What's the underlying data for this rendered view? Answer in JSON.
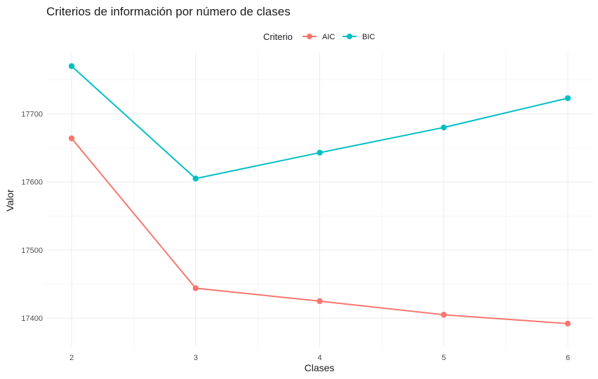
{
  "chart_data": {
    "type": "line",
    "title": "Criterios de información por número de clases",
    "xlabel": "Clases",
    "ylabel": "Valor",
    "x": [
      2,
      3,
      4,
      5,
      6
    ],
    "x_ticks": [
      "2",
      "3",
      "4",
      "5",
      "6"
    ],
    "y_ticks": [
      17400,
      17500,
      17600,
      17700
    ],
    "xlim": [
      2,
      6
    ],
    "ylim": [
      17358,
      17790
    ],
    "grid": true,
    "legend": {
      "title": "Criterio",
      "position": "top"
    },
    "series": [
      {
        "name": "AIC",
        "color": "#F8766D",
        "values": [
          17664,
          17444,
          17425,
          17405,
          17392
        ]
      },
      {
        "name": "BIC",
        "color": "#00BFC4",
        "values": [
          17770,
          17605,
          17643,
          17680,
          17723
        ]
      }
    ]
  }
}
